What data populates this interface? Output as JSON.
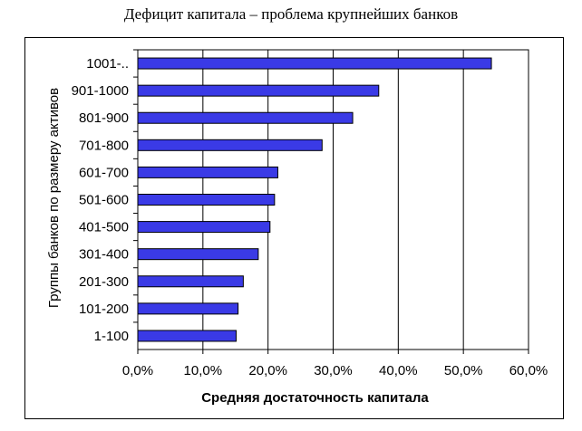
{
  "chart_data": {
    "type": "bar",
    "orientation": "horizontal",
    "title": "Дефицит капитала – проблема крупнейших банков",
    "xlabel": "Средняя достаточность капитала",
    "ylabel": "Группы банков по размеру активов",
    "categories": [
      "1001-..",
      "901-1000",
      "801-900",
      "701-800",
      "601-700",
      "501-600",
      "401-500",
      "301-400",
      "201-300",
      "101-200",
      "1-100"
    ],
    "values": [
      54.3,
      37.0,
      33.0,
      28.3,
      21.5,
      21.0,
      20.3,
      18.5,
      16.2,
      15.4,
      15.1
    ],
    "xlim": [
      0,
      60
    ],
    "xticks": [
      "0,0%",
      "10,0%",
      "20,0%",
      "30,0%",
      "40,0%",
      "50,0%",
      "60,0%"
    ],
    "grid": "vertical",
    "bar_color": "#3a3ae6"
  }
}
